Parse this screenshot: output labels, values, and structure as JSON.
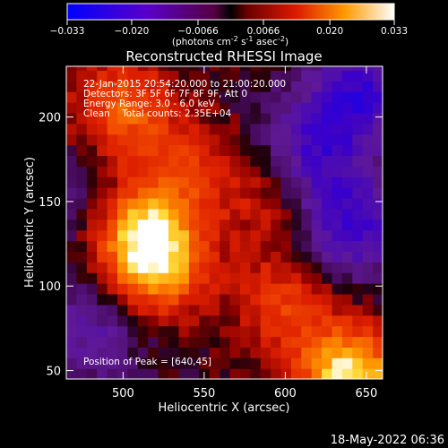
{
  "chart_data": {
    "type": "heatmap",
    "title": "Reconstructed RHESSI Image",
    "xlabel": "Heliocentric X (arcsec)",
    "ylabel": "Heliocentric Y (arcsec)",
    "xlim": [
      465,
      660
    ],
    "ylim": [
      45,
      230
    ],
    "xticks": [
      "500",
      "550",
      "600",
      "650"
    ],
    "yticks": [
      "50",
      "100",
      "150",
      "200"
    ],
    "colorbar": {
      "range": [
        -0.033,
        0.033
      ],
      "ticks": [
        "−0.033",
        "−0.020",
        "−0.0066",
        "0.0066",
        "0.020",
        "0.033"
      ],
      "unit_label": "(photons cm",
      "unit_sup1": "-2",
      "unit_mid": " s",
      "unit_sup2": "-1",
      "unit_mid2": " asec",
      "unit_sup3": "-2",
      "unit_end": ")"
    },
    "annotations": [
      "22-Jan-2015 20:54:20.000 to 21:00:20.000",
      "Detectors: 3F 5F 6F 7F 8F 9F, Att 0",
      "Energy Range: 3.0 - 6.0 keV",
      "Clean    Total counts: 2.35E+04"
    ],
    "peak_label": "Position of Peak = [640,45]",
    "peak": [
      640,
      45
    ],
    "sources": [
      {
        "x": 522,
        "y": 115,
        "value": 0.026
      },
      {
        "x": 505,
        "y": 135,
        "value": 0.02
      },
      {
        "x": 500,
        "y": 205,
        "value": 0.018
      },
      {
        "x": 540,
        "y": 168,
        "value": 0.012
      },
      {
        "x": 595,
        "y": 155,
        "value": 0.01
      },
      {
        "x": 600,
        "y": 90,
        "value": 0.014
      },
      {
        "x": 640,
        "y": 45,
        "value": 0.033
      },
      {
        "x": 645,
        "y": 215,
        "value": -0.02
      },
      {
        "x": 615,
        "y": 178,
        "value": -0.018
      },
      {
        "x": 640,
        "y": 135,
        "value": -0.02
      },
      {
        "x": 480,
        "y": 75,
        "value": -0.012
      },
      {
        "x": 478,
        "y": 150,
        "value": -0.01
      }
    ]
  },
  "timestamp": "18-May-2022 06:36",
  "colors": {
    "background": "#000000",
    "text": "#ffffff"
  }
}
